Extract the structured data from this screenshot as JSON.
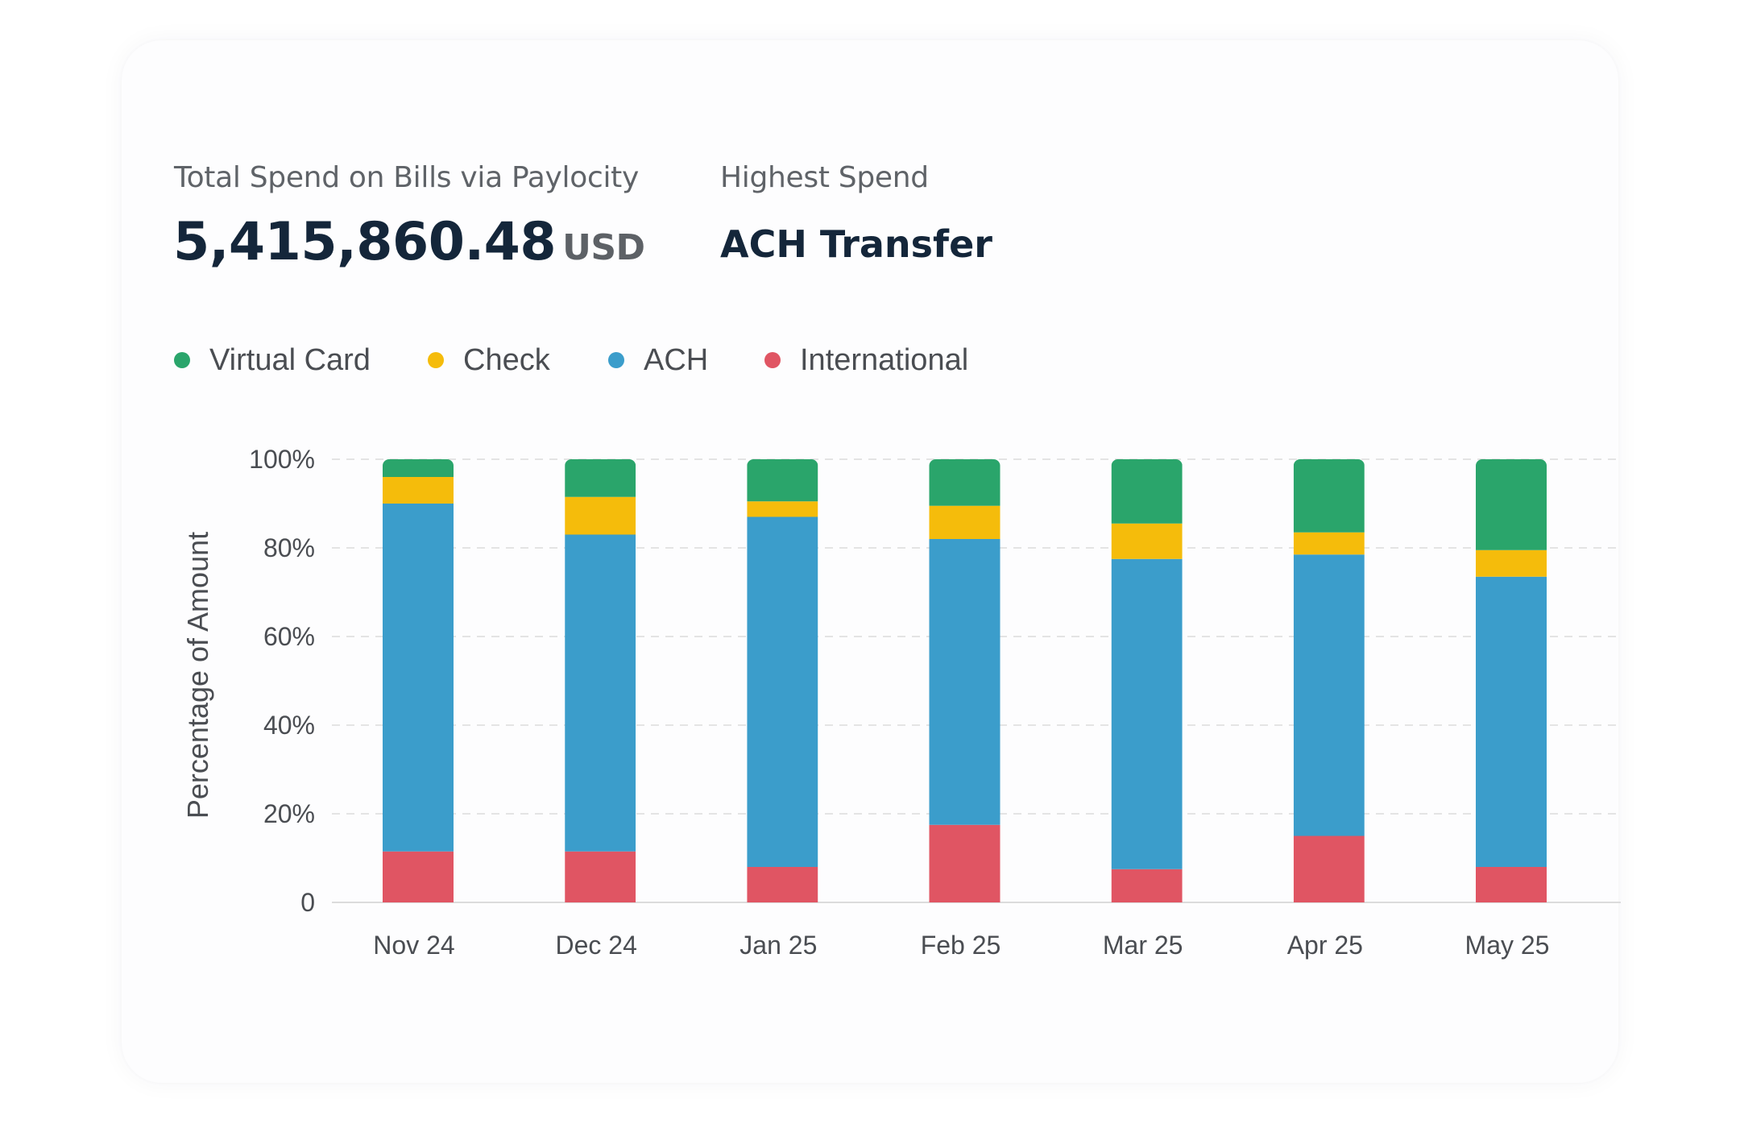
{
  "summary": {
    "total_label": "Total Spend on Bills via Paylocity",
    "total_value": "5,415,860.48",
    "total_currency": "USD",
    "highest_label": "Highest Spend",
    "highest_value": "ACH Transfer"
  },
  "legend": [
    {
      "name": "Virtual Card",
      "color": "#2aa56b"
    },
    {
      "name": "Check",
      "color": "#f5bc0b"
    },
    {
      "name": "ACH",
      "color": "#3b9dcb"
    },
    {
      "name": "International",
      "color": "#e05563"
    }
  ],
  "chart_data": {
    "type": "bar",
    "stacked": true,
    "categories": [
      "Nov 24",
      "Dec 24",
      "Jan 25",
      "Feb 25",
      "Mar 25",
      "Apr 25",
      "May 25"
    ],
    "series": [
      {
        "name": "International",
        "color": "#e05563",
        "values": [
          11.5,
          11.5,
          8,
          17.5,
          7.5,
          15,
          8
        ]
      },
      {
        "name": "ACH",
        "color": "#3b9dcb",
        "values": [
          78.5,
          71.5,
          79,
          64.5,
          70,
          63.5,
          65.5
        ]
      },
      {
        "name": "Check",
        "color": "#f5bc0b",
        "values": [
          6,
          8.5,
          3.5,
          7.5,
          8,
          5,
          6
        ]
      },
      {
        "name": "Virtual Card",
        "color": "#2aa56b",
        "values": [
          4,
          8.5,
          9.5,
          10.5,
          14.5,
          16.5,
          20.5
        ]
      }
    ],
    "ylabel": "Percentage of Amount",
    "xlabel": "",
    "ylim": [
      0,
      100
    ],
    "yticks": [
      0,
      20,
      40,
      60,
      80,
      100
    ],
    "ytick_labels": [
      "0",
      "20%",
      "40%",
      "60%",
      "80%",
      "100%"
    ],
    "grid": true,
    "legend_position": "top-left"
  }
}
